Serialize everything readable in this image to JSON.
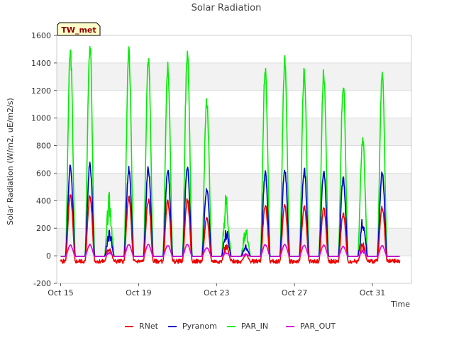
{
  "chart_data": {
    "type": "line",
    "title": "Solar Radiation",
    "xlabel": "Time",
    "ylabel": "Solar Radiation (W/m2, uE/m2/s)",
    "badge": "TW_met",
    "ylim": [
      -200,
      1600
    ],
    "xlim": [
      14.8,
      33.0
    ],
    "yticks": [
      -200,
      0,
      200,
      400,
      600,
      800,
      1000,
      1200,
      1400,
      1600
    ],
    "xticks": [
      {
        "value": 15,
        "label": "Oct 15"
      },
      {
        "value": 19,
        "label": "Oct 19"
      },
      {
        "value": 23,
        "label": "Oct 23"
      },
      {
        "value": 27,
        "label": "Oct 27"
      },
      {
        "value": 31,
        "label": "Oct 31"
      }
    ],
    "grid": "horizontal bands",
    "legend_position": "bottom-center",
    "daily_peaks": {
      "days": [
        15,
        16,
        17,
        18,
        19,
        20,
        21,
        22,
        23,
        24,
        25,
        26,
        27,
        28,
        29,
        30,
        31,
        32
      ],
      "PAR_IN": [
        1540,
        1590,
        470,
        1530,
        1480,
        1450,
        1520,
        1170,
        500,
        230,
        1400,
        1470,
        1390,
        1380,
        1290,
        880,
        1360,
        0
      ],
      "Pyranom": [
        670,
        700,
        200,
        650,
        660,
        640,
        670,
        500,
        210,
        80,
        620,
        660,
        650,
        630,
        580,
        290,
        620,
        0
      ],
      "RNet": [
        450,
        450,
        80,
        440,
        420,
        410,
        420,
        280,
        90,
        20,
        380,
        380,
        370,
        360,
        320,
        110,
        370,
        0
      ],
      "PAR_OUT": [
        80,
        85,
        30,
        85,
        85,
        80,
        85,
        60,
        30,
        15,
        85,
        85,
        80,
        80,
        70,
        40,
        75,
        0
      ]
    },
    "night_values": {
      "RNet": -40,
      "Pyranom": -5,
      "PAR_IN": -5,
      "PAR_OUT": -5
    },
    "series": [
      {
        "name": "RNet",
        "color": "#ee0000"
      },
      {
        "name": "Pyranom",
        "color": "#0000cc"
      },
      {
        "name": "PAR_IN",
        "color": "#00ee00"
      },
      {
        "name": "PAR_OUT",
        "color": "#dd00dd"
      }
    ]
  }
}
